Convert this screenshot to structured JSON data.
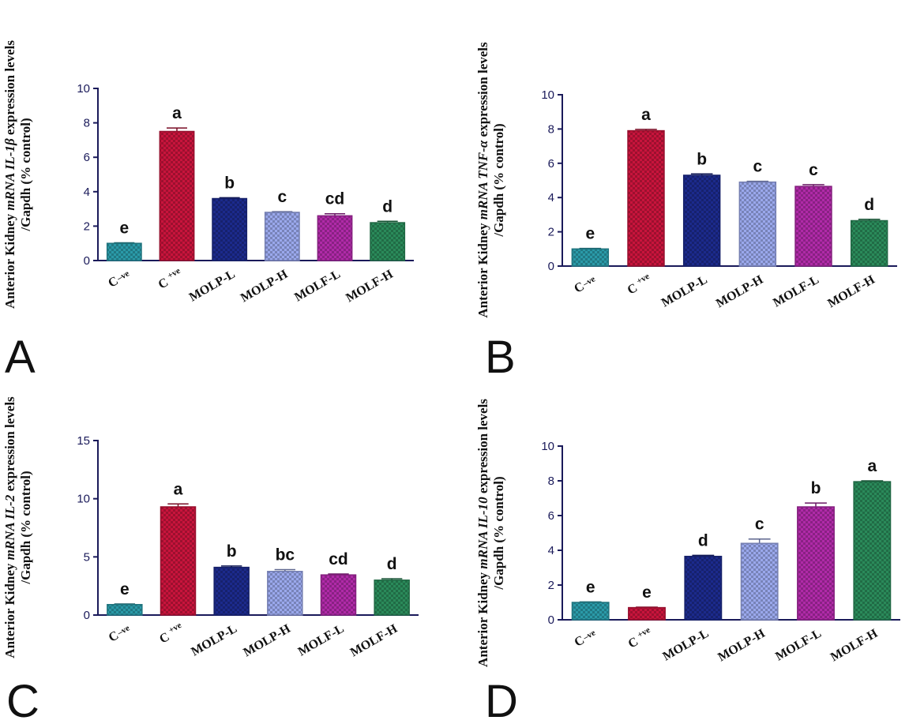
{
  "figure": {
    "bar_colors": [
      "#2a9aa8",
      "#c8143c",
      "#1c2a8c",
      "#9aa8ec",
      "#b02aa8",
      "#2a8a5a"
    ],
    "axis_color": "#1a1a5a",
    "ylabel_prefix": "Anterior Kidney ",
    "ylabel_suffix": " expression levels",
    "ylabel_line2": "/Gapdh (% control)",
    "mrna_word": "mRNA",
    "category_labels": [
      {
        "base": "C",
        "sup": "–ve",
        "sub": true
      },
      {
        "base": "C",
        "sup": "+ve",
        "sub": false
      },
      {
        "base": "MOLP-L"
      },
      {
        "base": "MOLP-H"
      },
      {
        "base": "MOLF-L"
      },
      {
        "base": "MOLF-H"
      }
    ]
  },
  "chart_data": [
    {
      "panel": "A",
      "type": "bar",
      "gene": "IL-1β",
      "categories": [
        "C-ve",
        "C+ve",
        "MOLP-L",
        "MOLP-H",
        "MOLF-L",
        "MOLF-H"
      ],
      "values": [
        1.0,
        7.5,
        3.6,
        2.8,
        2.6,
        2.2
      ],
      "errors": [
        0.03,
        0.2,
        0.05,
        0.04,
        0.12,
        0.08
      ],
      "letters": [
        "e",
        "a",
        "b",
        "c",
        "cd",
        "d"
      ],
      "ylim": [
        0,
        10
      ],
      "yticks": [
        0,
        2,
        4,
        6,
        8,
        10
      ]
    },
    {
      "panel": "B",
      "type": "bar",
      "gene": "TNF-α",
      "categories": [
        "C-ve",
        "C+ve",
        "MOLP-L",
        "MOLP-H",
        "MOLF-L",
        "MOLF-H"
      ],
      "values": [
        1.0,
        7.9,
        5.3,
        4.9,
        4.65,
        2.65
      ],
      "errors": [
        0.03,
        0.08,
        0.08,
        0.05,
        0.1,
        0.08
      ],
      "letters": [
        "e",
        "a",
        "b",
        "c",
        "c",
        "d"
      ],
      "ylim": [
        0,
        10
      ],
      "yticks": [
        0,
        2,
        4,
        6,
        8,
        10
      ]
    },
    {
      "panel": "C",
      "type": "bar",
      "gene": "IL-2",
      "categories": [
        "C-ve",
        "C+ve",
        "MOLP-L",
        "MOLP-H",
        "MOLF-L",
        "MOLF-H"
      ],
      "values": [
        0.9,
        9.3,
        4.1,
        3.75,
        3.45,
        3.0
      ],
      "errors": [
        0.05,
        0.25,
        0.12,
        0.15,
        0.08,
        0.12
      ],
      "letters": [
        "e",
        "a",
        "b",
        "bc",
        "cd",
        "d"
      ],
      "ylim": [
        0,
        15
      ],
      "yticks": [
        0,
        5,
        10,
        15
      ]
    },
    {
      "panel": "D",
      "type": "bar",
      "gene": "IL-10",
      "categories": [
        "C-ve",
        "C+ve",
        "MOLP-L",
        "MOLP-H",
        "MOLF-L",
        "MOLF-H"
      ],
      "values": [
        1.0,
        0.7,
        3.65,
        4.4,
        6.5,
        7.95
      ],
      "errors": [
        0.03,
        0.03,
        0.06,
        0.25,
        0.22,
        0.05
      ],
      "letters": [
        "e",
        "e",
        "d",
        "c",
        "b",
        "a"
      ],
      "ylim": [
        0,
        10
      ],
      "yticks": [
        0,
        2,
        4,
        6,
        8,
        10
      ]
    }
  ]
}
